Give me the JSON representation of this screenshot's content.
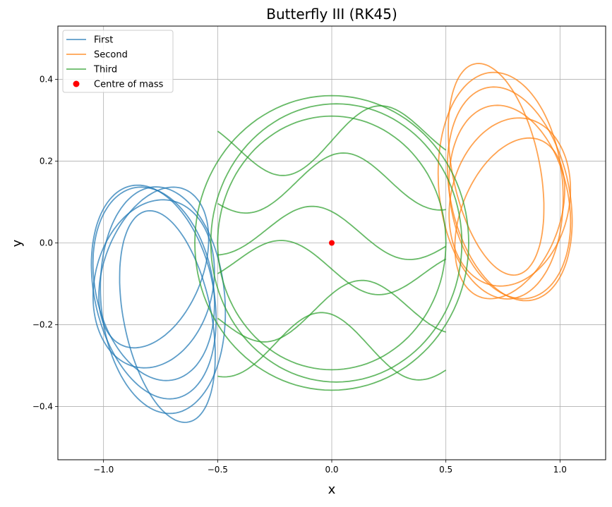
{
  "chart_data": {
    "type": "line",
    "title": "Butterfly III (RK45)",
    "xlabel": "x",
    "ylabel": "y",
    "xlim": [
      -1.2,
      1.2
    ],
    "ylim": [
      -0.53,
      0.53
    ],
    "xticks": [
      -1.0,
      -0.5,
      0.0,
      0.5,
      1.0
    ],
    "xtick_labels": [
      "−1.0",
      "−0.5",
      "0.0",
      "0.5",
      "1.0"
    ],
    "yticks": [
      -0.4,
      -0.2,
      0.0,
      0.2,
      0.4
    ],
    "ytick_labels": [
      "−0.4",
      "−0.2",
      "0.0",
      "0.2",
      "0.4"
    ],
    "grid": true,
    "legend_position": "top-left",
    "series": [
      {
        "name": "First",
        "color": "#1f77b4",
        "description": "closed orbit loops on the left",
        "center": [
          -0.75,
          -0.13
        ],
        "x_range": [
          -1.08,
          -0.47
        ],
        "y_range": [
          -0.48,
          0.15
        ],
        "loops": [
          {
            "ax": 0.29,
            "bx": 0.0,
            "ay": 0.26,
            "by": 0.0,
            "rot": -48,
            "cx": -0.74,
            "cy": -0.14
          },
          {
            "ax": 0.3,
            "bx": 0.0,
            "ay": 0.23,
            "by": 0.0,
            "rot": -40,
            "cx": -0.78,
            "cy": -0.12
          },
          {
            "ax": 0.28,
            "bx": 0.0,
            "ay": 0.22,
            "by": 0.0,
            "rot": -30,
            "cx": -0.78,
            "cy": -0.1
          },
          {
            "ax": 0.27,
            "bx": 0.0,
            "ay": 0.2,
            "by": 0.0,
            "rot": 15,
            "cx": -0.78,
            "cy": -0.1
          },
          {
            "ax": 0.28,
            "bx": 0.0,
            "ay": 0.18,
            "by": 0.0,
            "rot": -60,
            "cx": -0.72,
            "cy": -0.18
          },
          {
            "ax": 0.26,
            "bx": 0.0,
            "ay": 0.17,
            "by": 0.0,
            "rot": 30,
            "cx": -0.78,
            "cy": -0.06
          }
        ]
      },
      {
        "name": "Second",
        "color": "#ff7f0e",
        "description": "closed orbit loops on the right",
        "center": [
          0.75,
          0.13
        ],
        "x_range": [
          0.47,
          1.08
        ],
        "y_range": [
          -0.15,
          0.48
        ],
        "loops": [
          {
            "ax": 0.29,
            "bx": 0.0,
            "ay": 0.26,
            "by": 0.0,
            "rot": -48,
            "cx": 0.74,
            "cy": 0.14
          },
          {
            "ax": 0.3,
            "bx": 0.0,
            "ay": 0.23,
            "by": 0.0,
            "rot": -40,
            "cx": 0.78,
            "cy": 0.12
          },
          {
            "ax": 0.28,
            "bx": 0.0,
            "ay": 0.22,
            "by": 0.0,
            "rot": -30,
            "cx": 0.78,
            "cy": 0.1
          },
          {
            "ax": 0.27,
            "bx": 0.0,
            "ay": 0.2,
            "by": 0.0,
            "rot": 15,
            "cx": 0.78,
            "cy": 0.1
          },
          {
            "ax": 0.28,
            "bx": 0.0,
            "ay": 0.18,
            "by": 0.0,
            "rot": -60,
            "cx": 0.72,
            "cy": 0.18
          },
          {
            "ax": 0.26,
            "bx": 0.0,
            "ay": 0.17,
            "by": 0.0,
            "rot": 30,
            "cx": 0.78,
            "cy": 0.06
          }
        ]
      },
      {
        "name": "Third",
        "color": "#2ca02c",
        "description": "central orbit passing through the origin",
        "x_range": [
          -0.61,
          0.61
        ],
        "y_range": [
          -0.37,
          0.37
        ]
      },
      {
        "name": "Centre of mass",
        "color": "#ff0000",
        "marker": "circle",
        "x": [
          0.0
        ],
        "y": [
          0.0
        ]
      }
    ]
  }
}
